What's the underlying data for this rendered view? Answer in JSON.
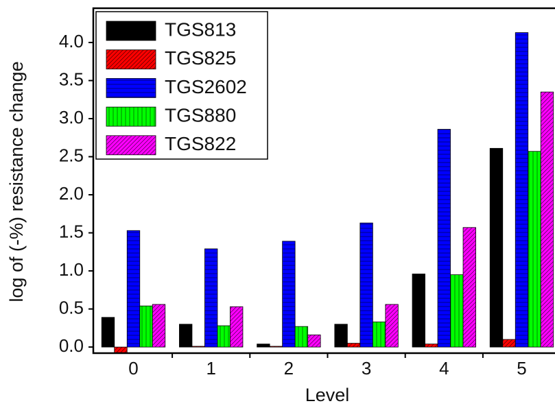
{
  "chart_data": {
    "type": "bar",
    "x_label": "Level",
    "y_label": "log of (-%) resistance change",
    "categories": [
      "0",
      "1",
      "2",
      "3",
      "4",
      "5"
    ],
    "series": [
      {
        "name": "TGS813",
        "color": "#000000",
        "values": [
          0.39,
          0.3,
          0.04,
          0.3,
          0.96,
          2.61
        ]
      },
      {
        "name": "TGS825",
        "color": "#ff0000",
        "values": [
          -0.08,
          0.01,
          0.01,
          0.05,
          0.04,
          0.1
        ]
      },
      {
        "name": "TGS2602",
        "color": "#0000ff",
        "values": [
          1.53,
          1.29,
          1.39,
          1.63,
          2.86,
          4.13
        ]
      },
      {
        "name": "TGS880",
        "color": "#00ff00",
        "values": [
          0.54,
          0.28,
          0.27,
          0.33,
          0.95,
          2.57
        ]
      },
      {
        "name": "TGS822",
        "color": "#ff00ff",
        "values": [
          0.56,
          0.53,
          0.16,
          0.56,
          1.57,
          3.35
        ]
      }
    ],
    "ylim": [
      -0.08,
      4.45
    ],
    "yticks": [
      {
        "value": 0,
        "label": "0.0"
      },
      0.5,
      {
        "value": 1,
        "label": "1.0"
      },
      1.5,
      {
        "value": 2,
        "label": "2.0"
      },
      2.5,
      {
        "value": 3,
        "label": "3.0"
      },
      3.5,
      {
        "value": 4,
        "label": "4.0"
      }
    ],
    "legend": "upper left"
  }
}
